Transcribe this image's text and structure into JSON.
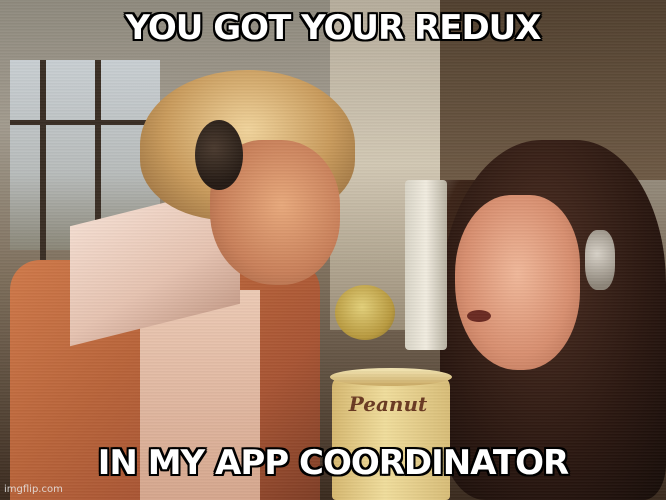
{
  "meme": {
    "top_text": "YOU GOT YOUR REDUX",
    "bottom_text": "IN MY APP COORDINATOR",
    "cup_label": "Peanut",
    "watermark": "imgflip.com"
  }
}
